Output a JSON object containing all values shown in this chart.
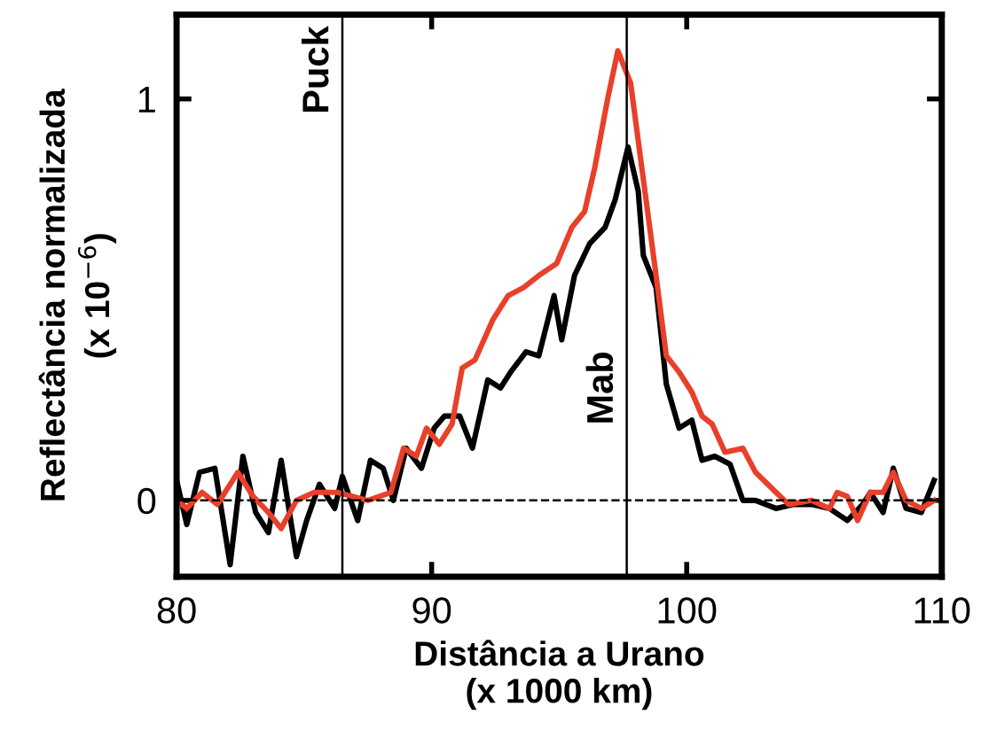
{
  "chart_data": {
    "type": "line",
    "xlabel": "Distância a Urano\n(x 1000 km)",
    "ylabel": "Reflectância normalizada\n(x 10$^{−6}$)",
    "xlim": [
      80,
      110
    ],
    "xticks": [
      80,
      90,
      100,
      110
    ],
    "ylim": [
      -0.19,
      1.21
    ],
    "yticks": [
      0,
      1
    ],
    "grid": false,
    "legend": false,
    "marker": "none",
    "line_style": "solid",
    "ref_lines": [
      {
        "axis": "x",
        "value": 86.5,
        "label": "Puck",
        "color": "#000000",
        "line_style": "solid"
      },
      {
        "axis": "x",
        "value": 97.65,
        "label": "Mab",
        "color": "#000000",
        "line_style": "solid"
      },
      {
        "axis": "y",
        "value": 0,
        "color": "#000000",
        "line_style": "dashed"
      }
    ],
    "series": [
      {
        "color": "#000000",
        "x": [
          80.0,
          80.4,
          80.9,
          81.5,
          82.1,
          82.6,
          83.1,
          83.6,
          84.1,
          84.7,
          85.1,
          85.6,
          86.2,
          86.5,
          87.1,
          87.6,
          88.1,
          88.5,
          89.0,
          89.6,
          90.1,
          90.5,
          91.1,
          91.6,
          92.2,
          92.7,
          93.1,
          93.7,
          94.2,
          94.8,
          95.1,
          95.6,
          96.2,
          96.8,
          97.2,
          97.7,
          98.1,
          98.3,
          98.8,
          99.2,
          99.7,
          100.2,
          100.6,
          101.1,
          101.7,
          102.2,
          102.7,
          103.5,
          104.2,
          104.9,
          105.6,
          106.3,
          106.9,
          107.2,
          107.7,
          108.1,
          108.6,
          109.2,
          109.7
        ],
        "values": [
          0.05,
          -0.06,
          0.07,
          0.08,
          -0.16,
          0.11,
          -0.03,
          -0.08,
          0.1,
          -0.14,
          -0.05,
          0.04,
          -0.02,
          0.06,
          -0.05,
          0.1,
          0.08,
          0.0,
          0.13,
          0.08,
          0.18,
          0.21,
          0.21,
          0.13,
          0.3,
          0.28,
          0.32,
          0.37,
          0.36,
          0.51,
          0.4,
          0.56,
          0.64,
          0.68,
          0.75,
          0.88,
          0.77,
          0.61,
          0.53,
          0.29,
          0.18,
          0.2,
          0.1,
          0.11,
          0.09,
          0.0,
          0.0,
          -0.02,
          -0.01,
          -0.01,
          -0.02,
          -0.05,
          -0.01,
          0.02,
          -0.03,
          0.08,
          -0.02,
          -0.03,
          0.05
        ]
      },
      {
        "color": "#e8402a",
        "x": [
          80.0,
          80.4,
          81.0,
          81.6,
          82.4,
          83.0,
          83.6,
          84.1,
          84.7,
          85.4,
          86.3,
          87.5,
          88.4,
          88.9,
          89.4,
          89.8,
          90.3,
          90.8,
          91.2,
          91.7,
          92.4,
          93.0,
          93.6,
          94.2,
          94.9,
          95.5,
          96.0,
          96.4,
          96.9,
          97.3,
          97.8,
          98.3,
          98.8,
          99.2,
          99.7,
          100.2,
          100.6,
          101.0,
          101.5,
          102.2,
          102.7,
          103.5,
          104.0,
          104.9,
          105.6,
          105.9,
          106.3,
          106.7,
          107.2,
          107.7,
          108.1,
          108.6,
          109.2,
          109.7
        ],
        "values": [
          0.0,
          -0.02,
          0.02,
          -0.01,
          0.07,
          0.01,
          -0.03,
          -0.07,
          0.0,
          0.02,
          0.02,
          0.0,
          0.02,
          0.13,
          0.11,
          0.18,
          0.14,
          0.19,
          0.33,
          0.35,
          0.45,
          0.51,
          0.53,
          0.56,
          0.59,
          0.68,
          0.72,
          0.83,
          1.0,
          1.12,
          1.04,
          0.8,
          0.56,
          0.36,
          0.32,
          0.27,
          0.21,
          0.19,
          0.12,
          0.13,
          0.07,
          0.02,
          -0.01,
          0.0,
          -0.02,
          0.02,
          0.01,
          -0.05,
          0.02,
          0.02,
          0.07,
          0.0,
          -0.02,
          0.0
        ]
      }
    ]
  }
}
